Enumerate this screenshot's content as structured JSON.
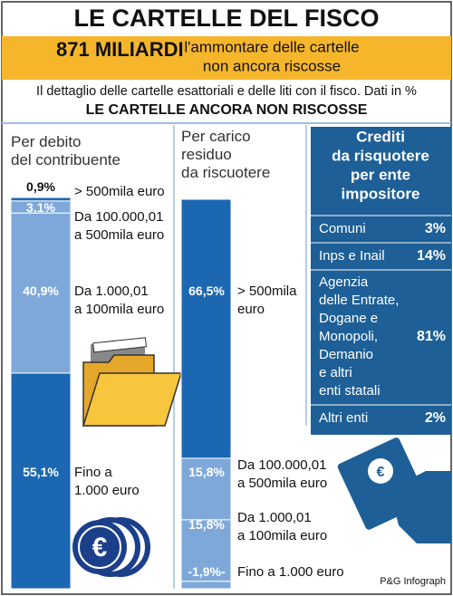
{
  "header": {
    "title": "LE CARTELLE DEL FISCO",
    "amount": "871 MILIARDI",
    "amount_note": "l'ammontare delle cartelle\nnon ancora riscosse",
    "subtitle": "Il dettaglio delle cartelle esattoriali e delle liti con il fisco. Dati in %",
    "section": "LE CARTELLE ANCORA NON RISCOSSE"
  },
  "chart_data": [
    {
      "type": "stacked_bar",
      "title": "Per debito\ndel contribuente",
      "categories": [
        "> 500mila euro",
        "Da 100.000,01\na 500mila euro",
        "Da 1.000,01\na 100mila euro",
        "Fino a\n1.000 euro"
      ],
      "values": [
        0.9,
        3.1,
        40.9,
        55.1
      ],
      "value_labels": [
        "0,9%",
        "3,1%",
        "40,9%",
        "55,1%"
      ],
      "colors": [
        "#1b67b2",
        "#7ea8da",
        "#7ea8da",
        "#1b67b2"
      ]
    },
    {
      "type": "stacked_bar",
      "title": "Per carico\nresiduo\nda riscuotere",
      "categories": [
        "> 500mila\neuro",
        "Da 100.000,01\na 500mila euro",
        "Da 1.000,01\na 100mila euro",
        "Fino a 1.000 euro"
      ],
      "values": [
        66.5,
        15.8,
        15.8,
        1.9
      ],
      "value_labels": [
        "66,5%",
        "15,8%",
        "15,8%",
        "-1,9%-"
      ],
      "colors": [
        "#1b67b2",
        "#7ea8da",
        "#7ea8da",
        "#7ea8da"
      ]
    }
  ],
  "table": {
    "title": "Crediti\nda risquotere\nper ente\nimpositore",
    "rows": [
      [
        "Comuni",
        "3%"
      ],
      [
        "Inps e Inail",
        "14%"
      ],
      [
        "Agenzia\ndelle Entrate,\nDogane e\nMonopoli,\nDemanio\ne altri\nenti statali",
        "81%"
      ],
      [
        "Altri enti",
        "2%"
      ]
    ]
  },
  "footer": "P&G Infograph"
}
